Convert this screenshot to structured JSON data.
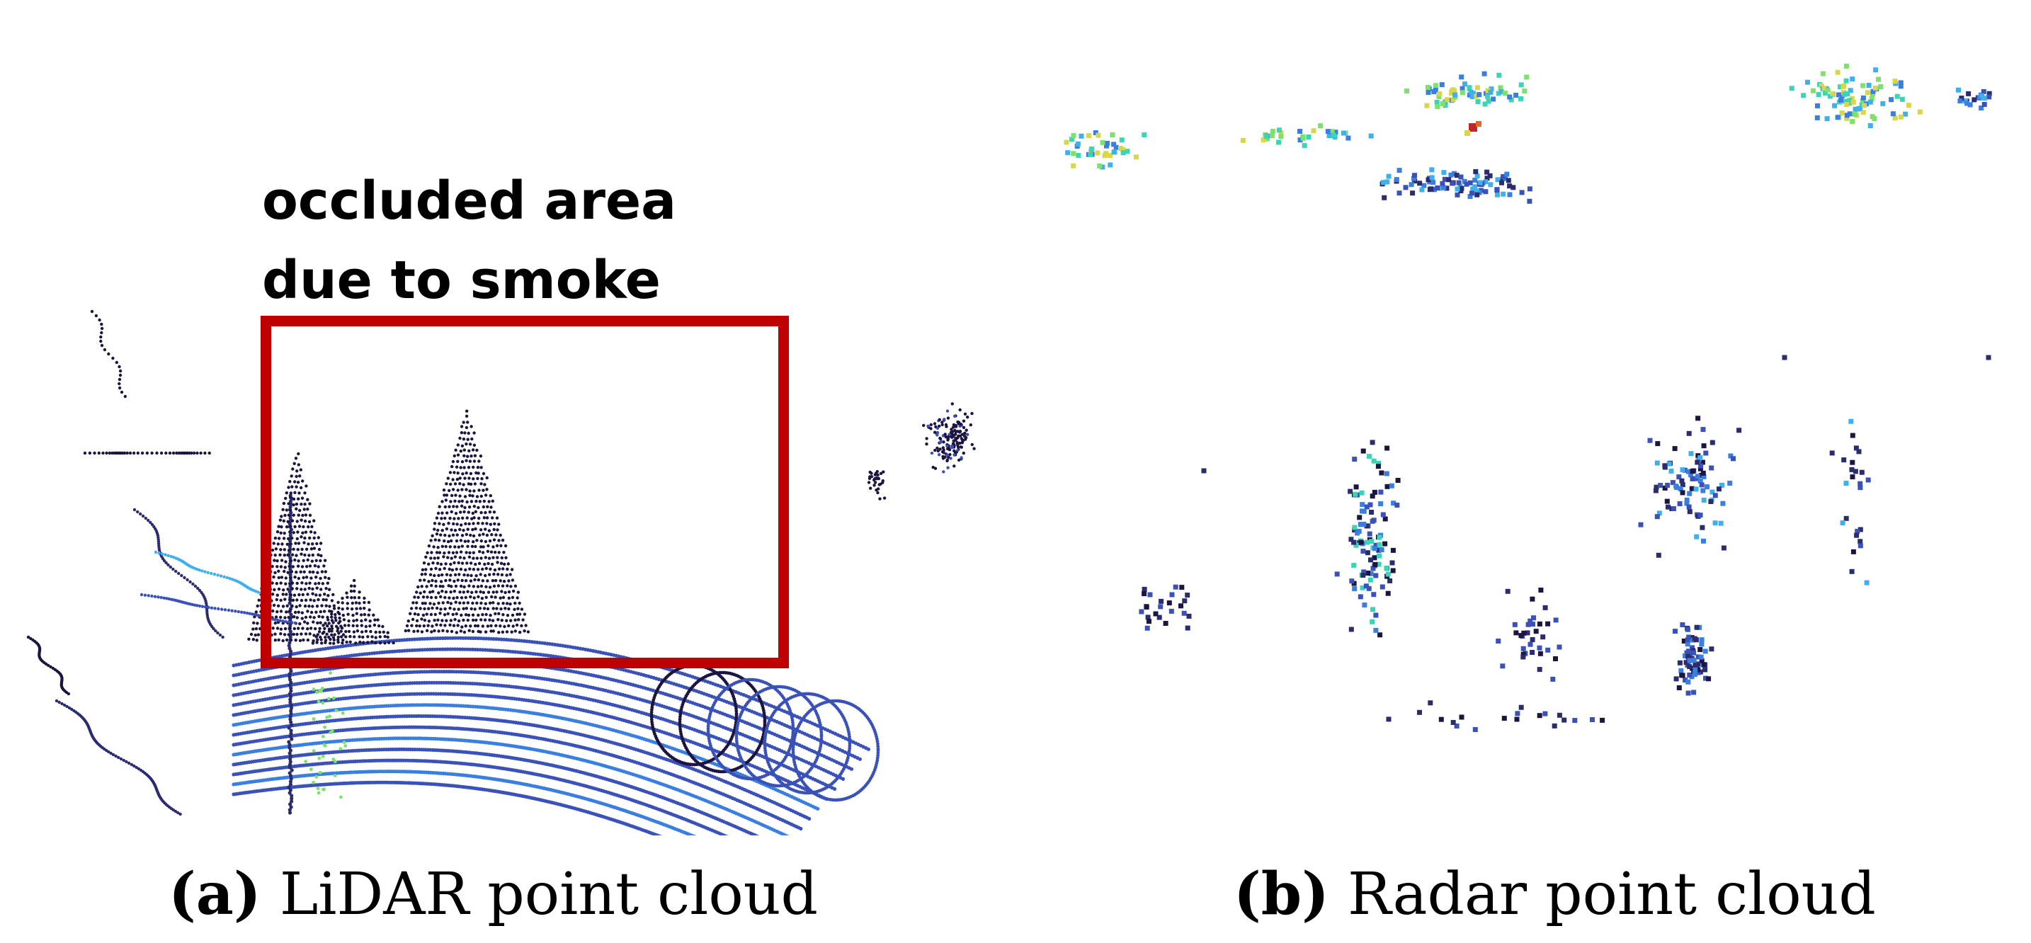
{
  "panels": {
    "lidar": {
      "tag": "(a)",
      "caption": "LiDAR point cloud",
      "annotation_lines": [
        "occluded area",
        "due to smoke"
      ],
      "box_color": "#c00000"
    },
    "radar": {
      "tag": "(b)",
      "caption": "Radar point cloud"
    }
  },
  "colormap": [
    "#1c1540",
    "#2a2c6e",
    "#3a52b8",
    "#3a7fe0",
    "#3fb0ec",
    "#38d6b6",
    "#7be36a",
    "#d8d64a",
    "#e06a2a",
    "#c0262a"
  ]
}
